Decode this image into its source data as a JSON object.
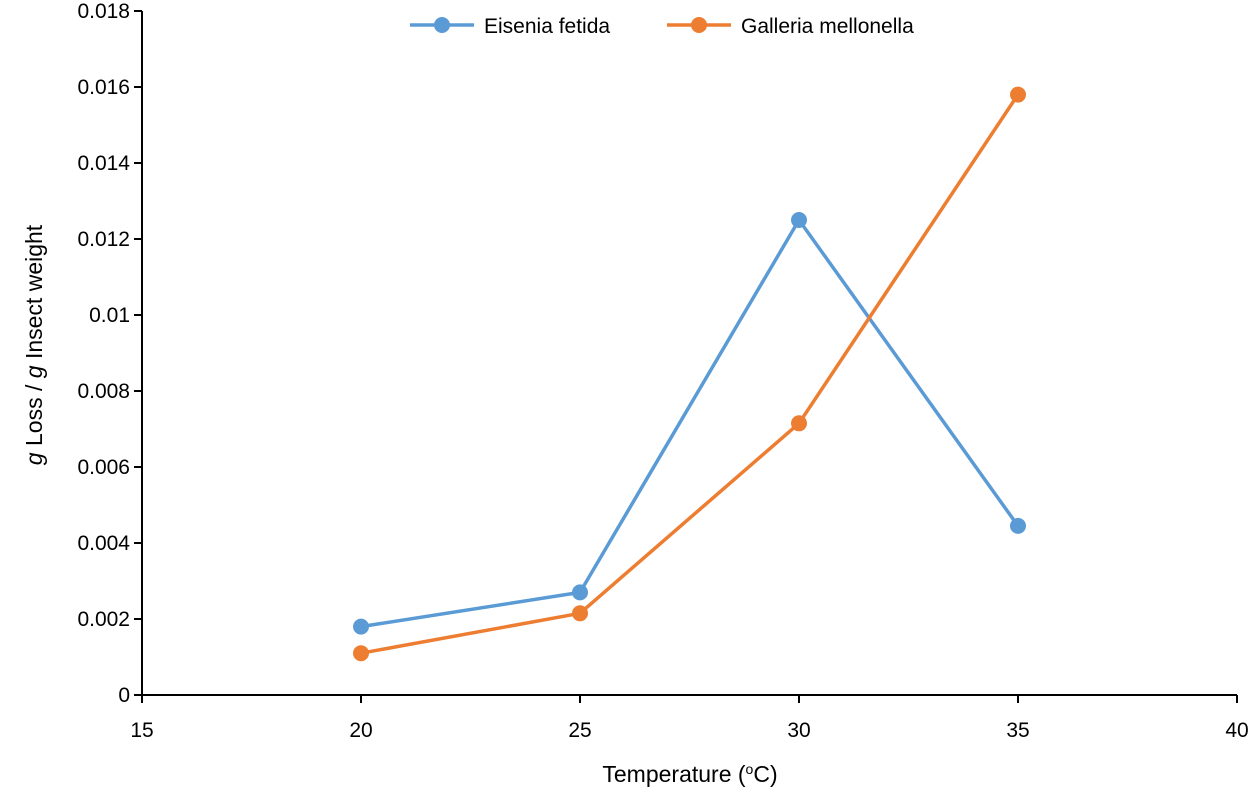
{
  "chart_data": {
    "type": "line",
    "title": "",
    "xlabel_main": "Temperature (",
    "xlabel_sup": "o",
    "xlabel_end": "C)",
    "ylabel_g1": "g",
    "ylabel_mid": " Loss / ",
    "ylabel_g2": "g",
    "ylabel_end": " Insect weight",
    "xlim": [
      15,
      40
    ],
    "ylim": [
      0,
      0.018
    ],
    "xticks": [
      15,
      20,
      25,
      30,
      35,
      40
    ],
    "xtick_labels": [
      "15",
      "20",
      "25",
      "30",
      "35",
      "40"
    ],
    "yticks": [
      0,
      0.002,
      0.004,
      0.006,
      0.008,
      0.01,
      0.012,
      0.014,
      0.016,
      0.018
    ],
    "ytick_labels": [
      "0",
      "0.002",
      "0.004",
      "0.006",
      "0.008",
      "0.01",
      "0.012",
      "0.014",
      "0.016",
      "0.018"
    ],
    "grid": false,
    "legend_position": "top-center",
    "series": [
      {
        "name": "Eisenia fetida",
        "color": "#5B9BD5",
        "x": [
          20,
          25,
          30,
          35
        ],
        "y": [
          0.0018,
          0.0027,
          0.0125,
          0.00445
        ]
      },
      {
        "name": "Galleria mellonella",
        "color": "#ED7D31",
        "x": [
          20,
          25,
          30,
          35
        ],
        "y": [
          0.0011,
          0.00215,
          0.00715,
          0.0158
        ]
      }
    ]
  }
}
